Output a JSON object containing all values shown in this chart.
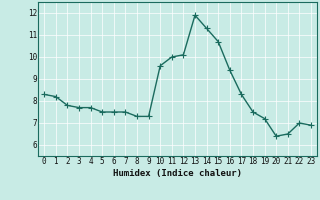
{
  "x": [
    0,
    1,
    2,
    3,
    4,
    5,
    6,
    7,
    8,
    9,
    10,
    11,
    12,
    13,
    14,
    15,
    16,
    17,
    18,
    19,
    20,
    21,
    22,
    23
  ],
  "y": [
    8.3,
    8.2,
    7.8,
    7.7,
    7.7,
    7.5,
    7.5,
    7.5,
    7.3,
    7.3,
    9.6,
    10.0,
    10.1,
    11.9,
    11.3,
    10.7,
    9.4,
    8.3,
    7.5,
    7.2,
    6.4,
    6.5,
    7.0,
    6.9
  ],
  "xlabel": "Humidex (Indice chaleur)",
  "xlim": [
    -0.5,
    23.5
  ],
  "ylim": [
    5.5,
    12.5
  ],
  "yticks": [
    6,
    7,
    8,
    9,
    10,
    11,
    12
  ],
  "xticks": [
    0,
    1,
    2,
    3,
    4,
    5,
    6,
    7,
    8,
    9,
    10,
    11,
    12,
    13,
    14,
    15,
    16,
    17,
    18,
    19,
    20,
    21,
    22,
    23
  ],
  "bg_color": "#c8ebe5",
  "line_color": "#1a6b5e",
  "grid_color": "#ffffff",
  "font_color": "#111111",
  "tick_fontsize": 5.5,
  "label_fontsize": 6.5,
  "line_width": 1.0,
  "marker_size": 4
}
